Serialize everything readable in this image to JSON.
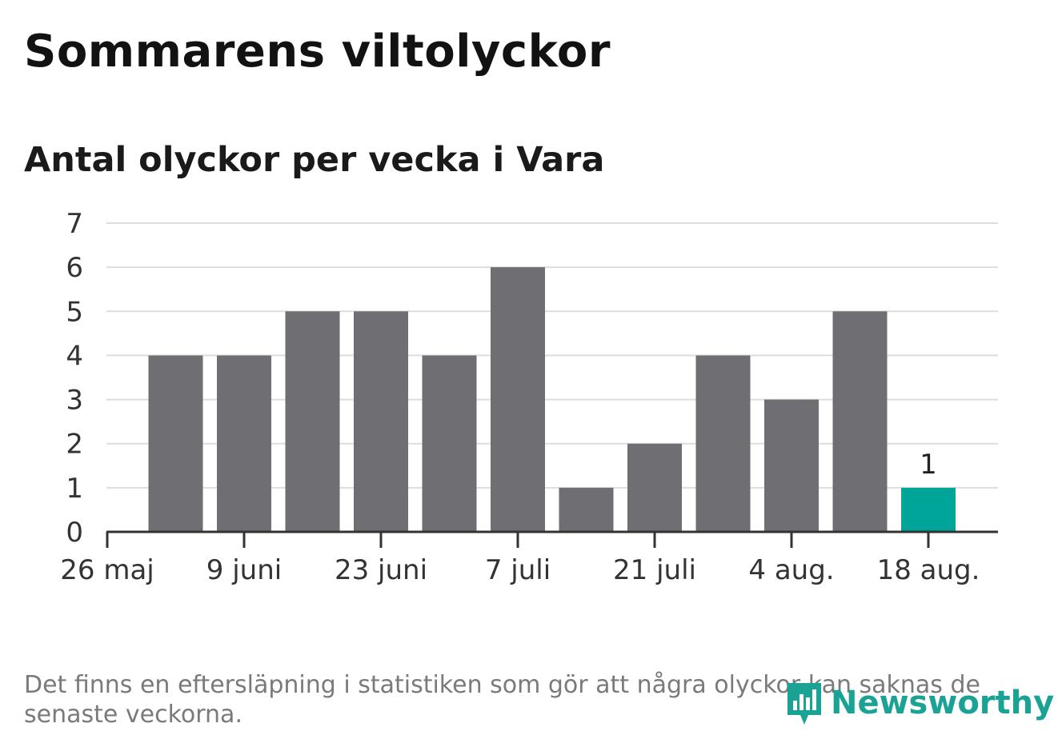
{
  "header": {
    "title": "Sommarens viltolyckor",
    "subtitle": "Antal olyckor per vecka i Vara"
  },
  "footer": {
    "note": "Det finns en eftersläpning i statistiken som gör att några olyckor kan saknas de senaste veckorna.",
    "brand": "Newsworthy",
    "logo_icon": "bar-chart-speech-bubble-icon"
  },
  "colors": {
    "bar": "#6f6e73",
    "highlight": "#00a59a",
    "grid": "#dddddd",
    "axis": "#333333",
    "brand": "#1aa394"
  },
  "chart_data": {
    "type": "bar",
    "title": "Antal olyckor per vecka i Vara",
    "xlabel": "",
    "ylabel": "",
    "ylim": [
      0,
      7
    ],
    "yticks": [
      0,
      1,
      2,
      3,
      4,
      5,
      6,
      7
    ],
    "grid": true,
    "xtick_labels": [
      "26 maj",
      "9 juni",
      "23 juni",
      "7 juli",
      "21 juli",
      "4 aug.",
      "18 aug."
    ],
    "categories": [
      "2 juni",
      "9 juni",
      "16 juni",
      "23 juni",
      "30 juni",
      "7 juli",
      "14 juli",
      "21 juli",
      "28 juli",
      "4 aug.",
      "11 aug.",
      "18 aug."
    ],
    "values": [
      4,
      4,
      5,
      5,
      4,
      6,
      1,
      2,
      4,
      3,
      5,
      1
    ],
    "highlight_index": 11,
    "data_labels": [
      {
        "index": 11,
        "text": "1"
      }
    ]
  }
}
